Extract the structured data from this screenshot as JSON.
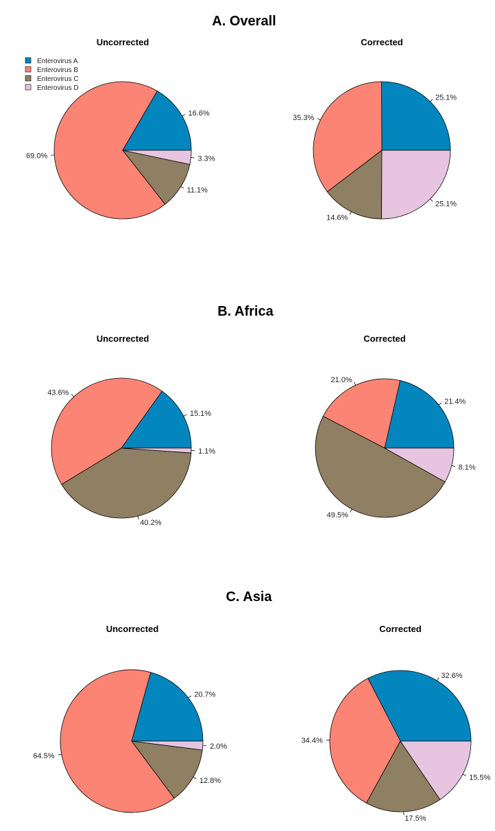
{
  "colors": {
    "Enterovirus A": "#0386be",
    "Enterovirus B": "#fc8474",
    "Enterovirus C": "#8f7f63",
    "Enterovirus D": "#e7c5e0"
  },
  "legend": [
    "Enterovirus A",
    "Enterovirus B",
    "Enterovirus C",
    "Enterovirus D"
  ],
  "chart_data": [
    {
      "type": "pie",
      "section": "A. Overall",
      "title": "Uncorrected",
      "slices": [
        {
          "name": "Enterovirus A",
          "value": 16.6,
          "label": "16.6%"
        },
        {
          "name": "Enterovirus B",
          "value": 69.0,
          "label": "69.0%"
        },
        {
          "name": "Enterovirus C",
          "value": 11.1,
          "label": "11.1%"
        },
        {
          "name": "Enterovirus D",
          "value": 3.3,
          "label": "3.3%"
        }
      ]
    },
    {
      "type": "pie",
      "section": "A. Overall",
      "title": "Corrected",
      "slices": [
        {
          "name": "Enterovirus A",
          "value": 25.1,
          "label": "25.1%"
        },
        {
          "name": "Enterovirus B",
          "value": 35.3,
          "label": "35.3%"
        },
        {
          "name": "Enterovirus C",
          "value": 14.6,
          "label": "14.6%"
        },
        {
          "name": "Enterovirus D",
          "value": 25.1,
          "label": "25.1%"
        }
      ]
    },
    {
      "type": "pie",
      "section": "B. Africa",
      "title": "Uncorrected",
      "slices": [
        {
          "name": "Enterovirus A",
          "value": 15.1,
          "label": "15.1%"
        },
        {
          "name": "Enterovirus B",
          "value": 43.6,
          "label": "43.6%"
        },
        {
          "name": "Enterovirus C",
          "value": 40.2,
          "label": "40.2%"
        },
        {
          "name": "Enterovirus D",
          "value": 1.1,
          "label": "1.1%"
        }
      ]
    },
    {
      "type": "pie",
      "section": "B. Africa",
      "title": "Corrected",
      "slices": [
        {
          "name": "Enterovirus A",
          "value": 21.4,
          "label": "21.4%"
        },
        {
          "name": "Enterovirus B",
          "value": 21.0,
          "label": "21.0%"
        },
        {
          "name": "Enterovirus C",
          "value": 49.5,
          "label": "49.5%"
        },
        {
          "name": "Enterovirus D",
          "value": 8.1,
          "label": "8.1%"
        }
      ]
    },
    {
      "type": "pie",
      "section": "C. Asia",
      "title": "Uncorrected",
      "slices": [
        {
          "name": "Enterovirus A",
          "value": 20.7,
          "label": "20.7%"
        },
        {
          "name": "Enterovirus B",
          "value": 64.5,
          "label": "64.5%"
        },
        {
          "name": "Enterovirus C",
          "value": 12.8,
          "label": "12.8%"
        },
        {
          "name": "Enterovirus D",
          "value": 2.0,
          "label": "2.0%"
        }
      ]
    },
    {
      "type": "pie",
      "section": "C. Asia",
      "title": "Corrected",
      "slices": [
        {
          "name": "Enterovirus A",
          "value": 32.6,
          "label": "32.6%"
        },
        {
          "name": "Enterovirus B",
          "value": 34.4,
          "label": "34.4%"
        },
        {
          "name": "Enterovirus C",
          "value": 17.5,
          "label": "17.5%"
        },
        {
          "name": "Enterovirus D",
          "value": 15.5,
          "label": "15.5%"
        }
      ]
    }
  ],
  "sections": [
    "A. Overall",
    "B. Africa",
    "C. Asia"
  ]
}
